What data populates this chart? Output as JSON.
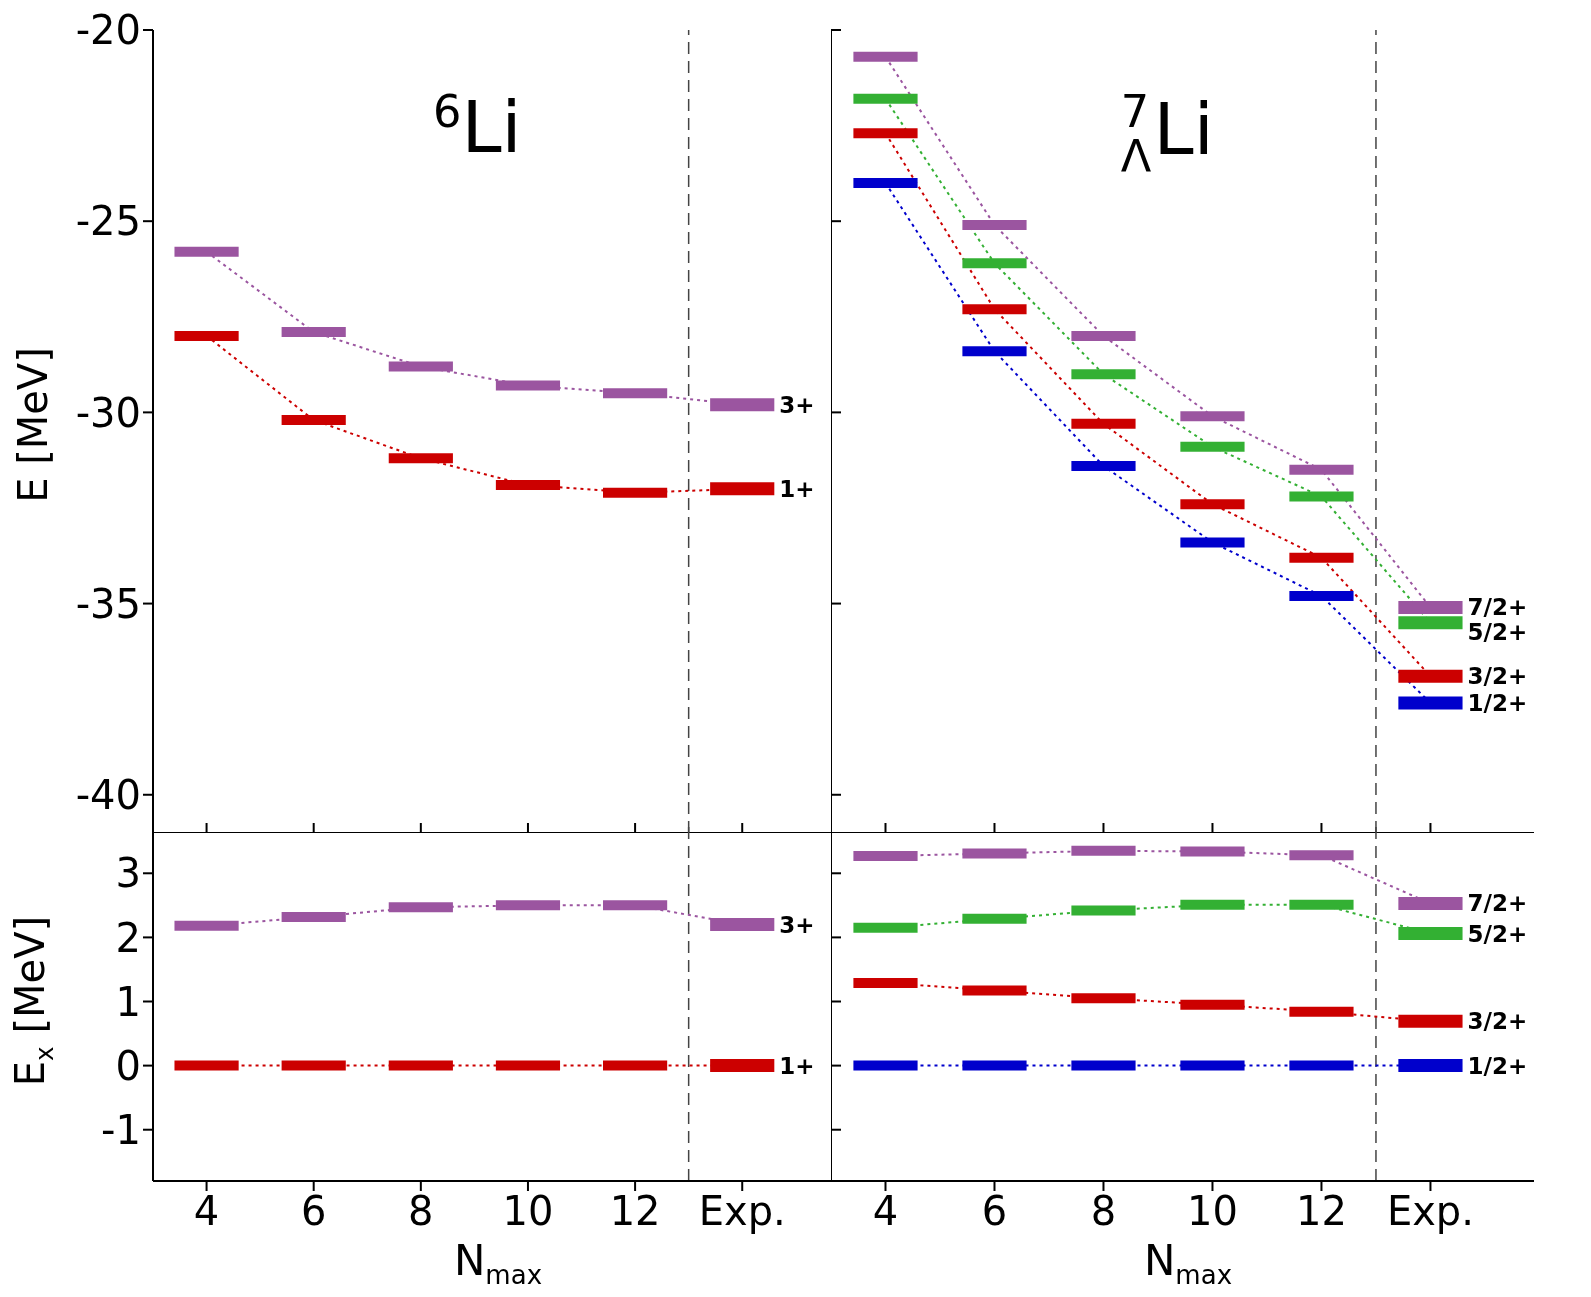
{
  "chart_data": [
    {
      "type": "line",
      "title": "$^{6}$Li",
      "ylabel": "E [MeV]",
      "x": [
        4,
        6,
        8,
        10,
        12,
        14
      ],
      "xlim": [
        3,
        15.9
      ],
      "xticks": [
        4,
        6,
        8,
        10,
        12,
        14
      ],
      "ylim": [
        -41,
        -20
      ],
      "yticks": [
        -40,
        -35,
        -30,
        -25,
        -20
      ],
      "tick_labels": "y",
      "line_style": "dotted",
      "legend": "right",
      "ref_lines": [
        {
          "axis": "x",
          "value": 13,
          "color": "#444444",
          "line_style": "dashed"
        }
      ],
      "series": [
        {
          "name": "3+",
          "color": "#9b55a0",
          "values": [
            -25.8,
            -27.9,
            -28.8,
            -29.3,
            -29.5,
            -29.8
          ],
          "xerrors": [
            0.6,
            0.6,
            0.6,
            0.6,
            0.6,
            0.6
          ]
        },
        {
          "name": "1+",
          "color": "#cc0000",
          "values": [
            -28.0,
            -30.2,
            -31.2,
            -31.9,
            -32.1,
            -32.0
          ],
          "xerrors": [
            0.6,
            0.6,
            0.6,
            0.6,
            0.6,
            0.6
          ]
        }
      ]
    },
    {
      "type": "line",
      "title": "$^{7}$$_{Λ}$Li",
      "x": [
        4,
        6,
        8,
        10,
        12,
        14
      ],
      "xlim": [
        3,
        15.9
      ],
      "xticks": [
        4,
        6,
        8,
        10,
        12,
        14
      ],
      "ylim": [
        -41,
        -20
      ],
      "yticks": [
        -40,
        -35,
        -30,
        -25,
        -20
      ],
      "tick_labels": false,
      "line_style": "dotted",
      "legend": "right",
      "ref_lines": [
        {
          "axis": "x",
          "value": 13,
          "color": "#444444",
          "line_style": "dashed"
        }
      ],
      "series": [
        {
          "name": "7/2+",
          "color": "#9b55a0",
          "values": [
            -20.7,
            -25.1,
            -28.0,
            -30.1,
            -31.5,
            -35.1
          ],
          "xerrors": [
            0.6,
            0.6,
            0.6,
            0.6,
            0.6,
            0.6
          ]
        },
        {
          "name": "5/2+",
          "color": "#33b033",
          "values": [
            -21.8,
            -26.1,
            -29.0,
            -30.9,
            -32.2,
            -35.5
          ],
          "xerrors": [
            0.6,
            0.6,
            0.6,
            0.6,
            0.6,
            0.6
          ]
        },
        {
          "name": "3/2+",
          "color": "#cc0000",
          "values": [
            -22.7,
            -27.3,
            -30.3,
            -32.4,
            -33.8,
            -36.9
          ],
          "xerrors": [
            0.6,
            0.6,
            0.6,
            0.6,
            0.6,
            0.6
          ]
        },
        {
          "name": "1/2+",
          "color": "#0000cc",
          "values": [
            -24.0,
            -28.4,
            -31.4,
            -33.4,
            -34.8,
            -37.6
          ],
          "xerrors": [
            0.6,
            0.6,
            0.6,
            0.6,
            0.6,
            0.6
          ]
        }
      ]
    },
    {
      "type": "line",
      "xlabel": "N$_{max}$",
      "ylabel": "E$_{x}$ [MeV]",
      "x": [
        4,
        6,
        8,
        10,
        12,
        14
      ],
      "xlim": [
        3,
        15.9
      ],
      "xticks": [
        4,
        6,
        8,
        10,
        12,
        {
          "value": 14,
          "label": "Exp."
        }
      ],
      "ylim": [
        -1.8,
        3.8
      ],
      "yticks": [
        -1,
        0,
        1,
        2,
        3
      ],
      "line_style": "dotted",
      "legend": "right",
      "ref_lines": [
        {
          "axis": "x",
          "value": 13,
          "color": "#444444",
          "line_style": "dashed"
        }
      ],
      "series": [
        {
          "name": "3+",
          "color": "#9b55a0",
          "values": [
            2.18,
            2.32,
            2.47,
            2.5,
            2.5,
            2.2
          ],
          "xerrors": [
            0.6,
            0.6,
            0.6,
            0.6,
            0.6,
            0.6
          ]
        },
        {
          "name": "1+",
          "color": "#cc0000",
          "values": [
            0,
            0,
            0,
            0,
            0,
            0
          ],
          "xerrors": [
            0.6,
            0.6,
            0.6,
            0.6,
            0.6,
            0.6
          ]
        }
      ]
    },
    {
      "type": "line",
      "xlabel": "N$_{max}$",
      "x": [
        4,
        6,
        8,
        10,
        12,
        14
      ],
      "xlim": [
        3,
        15.9
      ],
      "xticks": [
        4,
        6,
        8,
        10,
        12,
        {
          "value": 14,
          "label": "Exp."
        }
      ],
      "ylim": [
        -1.8,
        3.8
      ],
      "yticks": [
        -1,
        0,
        1,
        2,
        3
      ],
      "tick_labels": "x",
      "line_style": "dotted",
      "legend": "right",
      "ref_lines": [
        {
          "axis": "x",
          "value": 13,
          "color": "#444444",
          "line_style": "dashed"
        }
      ],
      "series": [
        {
          "name": "7/2+",
          "color": "#9b55a0",
          "values": [
            3.27,
            3.31,
            3.35,
            3.34,
            3.28,
            2.53
          ],
          "xerrors": [
            0.6,
            0.6,
            0.6,
            0.6,
            0.6,
            0.6
          ]
        },
        {
          "name": "5/2+",
          "color": "#33b033",
          "values": [
            2.15,
            2.29,
            2.42,
            2.51,
            2.51,
            2.06
          ],
          "xerrors": [
            0.6,
            0.6,
            0.6,
            0.6,
            0.6,
            0.6
          ]
        },
        {
          "name": "3/2+",
          "color": "#cc0000",
          "values": [
            1.29,
            1.17,
            1.05,
            0.95,
            0.84,
            0.69
          ],
          "xerrors": [
            0.6,
            0.6,
            0.6,
            0.6,
            0.6,
            0.6
          ]
        },
        {
          "name": "1/2+",
          "color": "#0000cc",
          "values": [
            0,
            0,
            0,
            0,
            0,
            0
          ],
          "xerrors": [
            0.6,
            0.6,
            0.6,
            0.6,
            0.6,
            0.6
          ]
        }
      ]
    }
  ]
}
